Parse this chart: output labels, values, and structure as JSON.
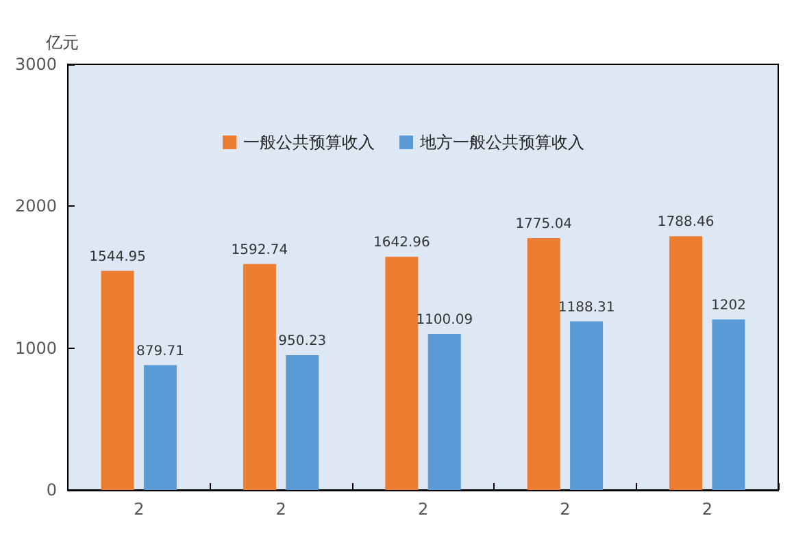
{
  "chart_data": {
    "type": "bar",
    "ylabel": "亿元",
    "categories": [
      "2",
      "2",
      "2",
      "2",
      "2"
    ],
    "series": [
      {
        "name": "一般公共预算收入",
        "color": "#ed7d31",
        "values": [
          1544.95,
          1592.74,
          1642.96,
          1775.04,
          1788.46
        ]
      },
      {
        "name": "地方一般公共预算收入",
        "color": "#5b9bd5",
        "values": [
          879.71,
          950.23,
          1100.09,
          1188.31,
          1202
        ]
      }
    ],
    "ylim": [
      0,
      3000
    ],
    "yticks": [
      0,
      1000,
      2000,
      3000
    ],
    "grid": false,
    "legend": "top",
    "data_labels": true
  }
}
